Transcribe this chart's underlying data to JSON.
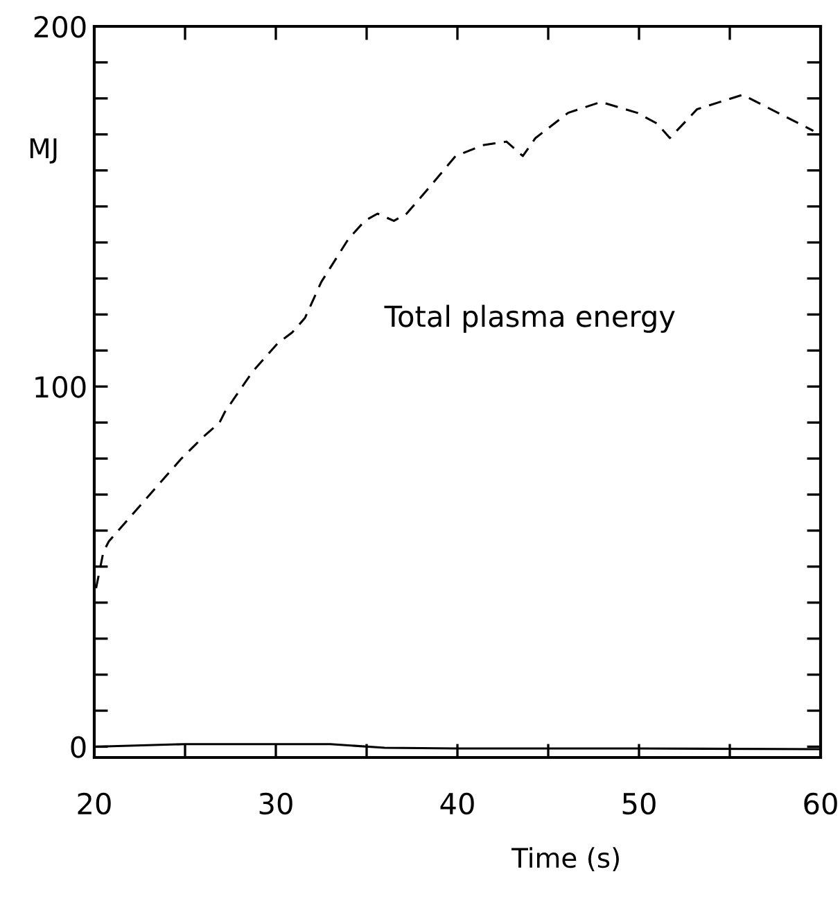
{
  "chart_data": {
    "type": "line",
    "xlabel": "Time (s)",
    "ylabel": "MJ",
    "annotations": [
      "Total plasma energy"
    ],
    "series": [
      {
        "color": "#000000",
        "line_style": "dashed",
        "x": [
          20.1,
          20.5,
          20.8,
          24.8,
          26.0,
          26.9,
          27.2,
          28.7,
          30.1,
          30.9,
          31.6,
          32.5,
          34.0,
          34.9,
          35.6,
          36.5,
          37.2,
          38.4,
          39.9,
          41.4,
          42.7,
          43.6,
          44.3,
          46.1,
          47.9,
          49.9,
          51.0,
          51.7,
          53.2,
          55.7,
          59.6
        ],
        "values": [
          44,
          54,
          57,
          80,
          86,
          90,
          93,
          104,
          112,
          115,
          119,
          129,
          141,
          146,
          148,
          146,
          148,
          155,
          164,
          167,
          168,
          164,
          169,
          176,
          179,
          176,
          173,
          169,
          177,
          181,
          171
        ]
      },
      {
        "color": "#000000",
        "line_style": "solid",
        "x": [
          20,
          25,
          30,
          33,
          36,
          40,
          50,
          60
        ],
        "values": [
          0,
          0.7,
          0.7,
          0.7,
          -0.3,
          -0.5,
          -0.5,
          -0.7
        ]
      }
    ],
    "xlim": [
      20,
      60
    ],
    "ylim": [
      -3,
      200
    ],
    "xticks": [
      20,
      {
        "value": 25,
        "label": null
      },
      30,
      {
        "value": 35,
        "label": null
      },
      40,
      {
        "value": 45,
        "label": null
      },
      50,
      {
        "value": 55,
        "label": null
      },
      60
    ],
    "yticks": [
      0,
      {
        "value": 10,
        "label": null
      },
      {
        "value": 20,
        "label": null
      },
      {
        "value": 30,
        "label": null
      },
      {
        "value": 40,
        "label": null
      },
      {
        "value": 50,
        "label": null
      },
      {
        "value": 60,
        "label": null
      },
      {
        "value": 70,
        "label": null
      },
      {
        "value": 80,
        "label": null
      },
      {
        "value": 90,
        "label": null
      },
      100,
      {
        "value": 110,
        "label": null
      },
      {
        "value": 120,
        "label": null
      },
      {
        "value": 130,
        "label": null
      },
      {
        "value": 140,
        "label": null
      },
      {
        "value": 150,
        "label": null
      },
      {
        "value": 160,
        "label": null
      },
      {
        "value": 170,
        "label": null
      },
      {
        "value": 180,
        "label": null
      },
      {
        "value": 190,
        "label": null
      },
      200
    ],
    "grid": false,
    "legend": false
  }
}
